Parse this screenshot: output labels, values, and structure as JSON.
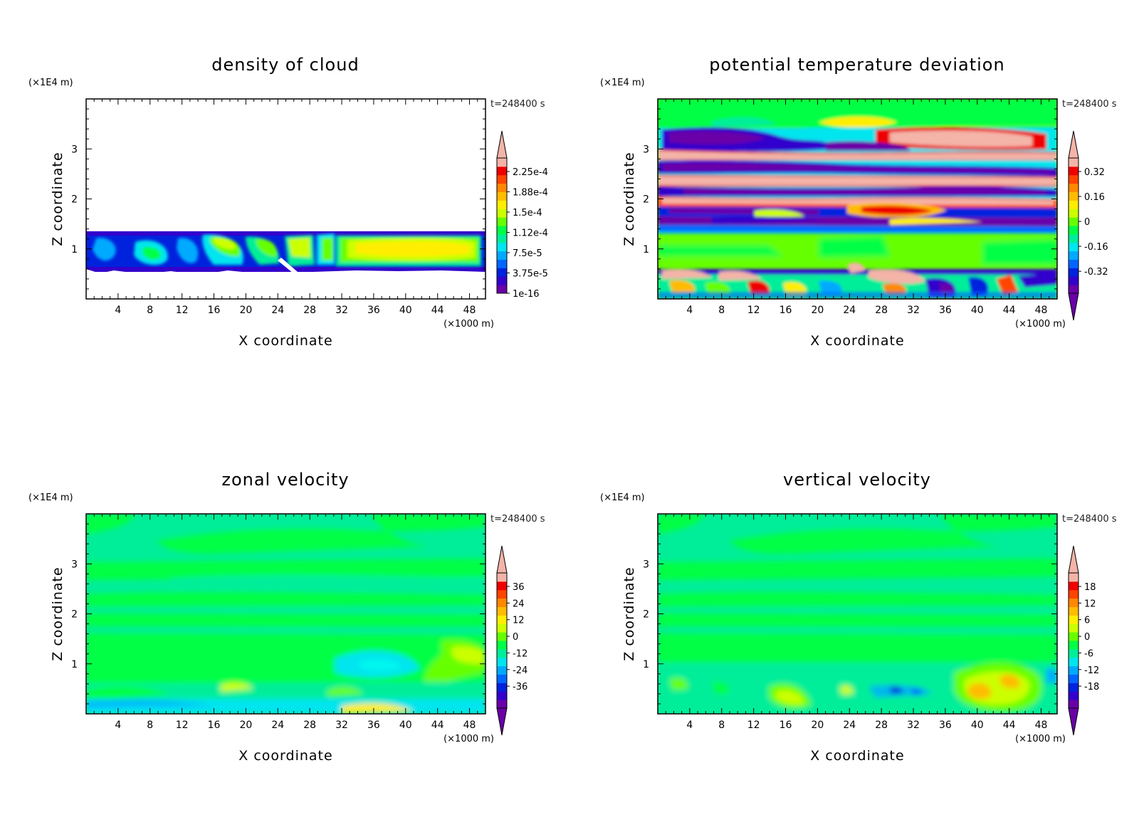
{
  "chart_data": [
    {
      "type": "heatmap",
      "title": "density of cloud",
      "xlabel": "X coordinate",
      "ylabel": "Z coordinate",
      "x_unit": "(×1000 m)",
      "y_unit": "(×1E4 m)",
      "time_label": "t=248400 s",
      "xlim": [
        0,
        50
      ],
      "ylim": [
        0,
        4
      ],
      "x_ticks": [
        "4",
        "8",
        "12",
        "16",
        "20",
        "24",
        "28",
        "32",
        "36",
        "40",
        "44",
        "48"
      ],
      "y_ticks": [
        "1",
        "2",
        "3"
      ],
      "colorbar": {
        "labels": [
          "2.25e-4",
          "1.88e-4",
          "1.5e-4",
          "1.12e-4",
          "7.5e-5",
          "3.75e-5",
          "1e-16"
        ],
        "colors": [
          "#6a00a8",
          "#3300cc",
          "#0022dd",
          "#0066ff",
          "#00aaff",
          "#00e5ee",
          "#00ee99",
          "#00ff44",
          "#66ff00",
          "#ccff00",
          "#ffee00",
          "#ffbb00",
          "#ff8800",
          "#ff4400",
          "#ee0000",
          "#f4b4a8"
        ],
        "lower_arrow": false,
        "upper_arrow": true
      }
    },
    {
      "type": "heatmap",
      "title": "potential temperature deviation",
      "xlabel": "X coordinate",
      "ylabel": "Z coordinate",
      "x_unit": "(×1000 m)",
      "y_unit": "(×1E4 m)",
      "time_label": "t=248400 s",
      "xlim": [
        0,
        50
      ],
      "ylim": [
        0,
        4
      ],
      "x_ticks": [
        "4",
        "8",
        "12",
        "16",
        "20",
        "24",
        "28",
        "32",
        "36",
        "40",
        "44",
        "48"
      ],
      "y_ticks": [
        "1",
        "2",
        "3"
      ],
      "colorbar": {
        "labels": [
          "0.32",
          "0.16",
          "0",
          "-0.16",
          "-0.32"
        ],
        "colors": [
          "#6a00a8",
          "#3300cc",
          "#0022dd",
          "#0066ff",
          "#00aaff",
          "#00e5ee",
          "#00ee99",
          "#00ff44",
          "#66ff00",
          "#ccff00",
          "#ffee00",
          "#ffbb00",
          "#ff8800",
          "#ff4400",
          "#ee0000",
          "#f4b4a8"
        ],
        "lower_arrow": true,
        "upper_arrow": true
      }
    },
    {
      "type": "heatmap",
      "title": "zonal velocity",
      "xlabel": "X coordinate",
      "ylabel": "Z coordinate",
      "x_unit": "(×1000 m)",
      "y_unit": "(×1E4 m)",
      "time_label": "t=248400 s",
      "xlim": [
        0,
        50
      ],
      "ylim": [
        0,
        4
      ],
      "x_ticks": [
        "4",
        "8",
        "12",
        "16",
        "20",
        "24",
        "28",
        "32",
        "36",
        "40",
        "44",
        "48"
      ],
      "y_ticks": [
        "1",
        "2",
        "3"
      ],
      "colorbar": {
        "labels": [
          "36",
          "24",
          "12",
          "0",
          "-12",
          "-24",
          "-36"
        ],
        "colors": [
          "#6a00a8",
          "#3300cc",
          "#0022dd",
          "#0066ff",
          "#00aaff",
          "#00e5ee",
          "#00ee99",
          "#00ff44",
          "#66ff00",
          "#ccff00",
          "#ffee00",
          "#ffbb00",
          "#ff8800",
          "#ff4400",
          "#ee0000",
          "#f4b4a8"
        ],
        "lower_arrow": true,
        "upper_arrow": true
      }
    },
    {
      "type": "heatmap",
      "title": "vertical velocity",
      "xlabel": "X coordinate",
      "ylabel": "Z coordinate",
      "x_unit": "(×1000 m)",
      "y_unit": "(×1E4 m)",
      "time_label": "t=248400 s",
      "xlim": [
        0,
        50
      ],
      "ylim": [
        0,
        4
      ],
      "x_ticks": [
        "4",
        "8",
        "12",
        "16",
        "20",
        "24",
        "28",
        "32",
        "36",
        "40",
        "44",
        "48"
      ],
      "y_ticks": [
        "1",
        "2",
        "3"
      ],
      "colorbar": {
        "labels": [
          "18",
          "12",
          "6",
          "0",
          "-6",
          "-12",
          "-18"
        ],
        "colors": [
          "#6a00a8",
          "#3300cc",
          "#0022dd",
          "#0066ff",
          "#00aaff",
          "#00e5ee",
          "#00ee99",
          "#00ff44",
          "#66ff00",
          "#ccff00",
          "#ffee00",
          "#ffbb00",
          "#ff8800",
          "#ff4400",
          "#ee0000",
          "#f4b4a8"
        ],
        "lower_arrow": true,
        "upper_arrow": true
      }
    }
  ]
}
